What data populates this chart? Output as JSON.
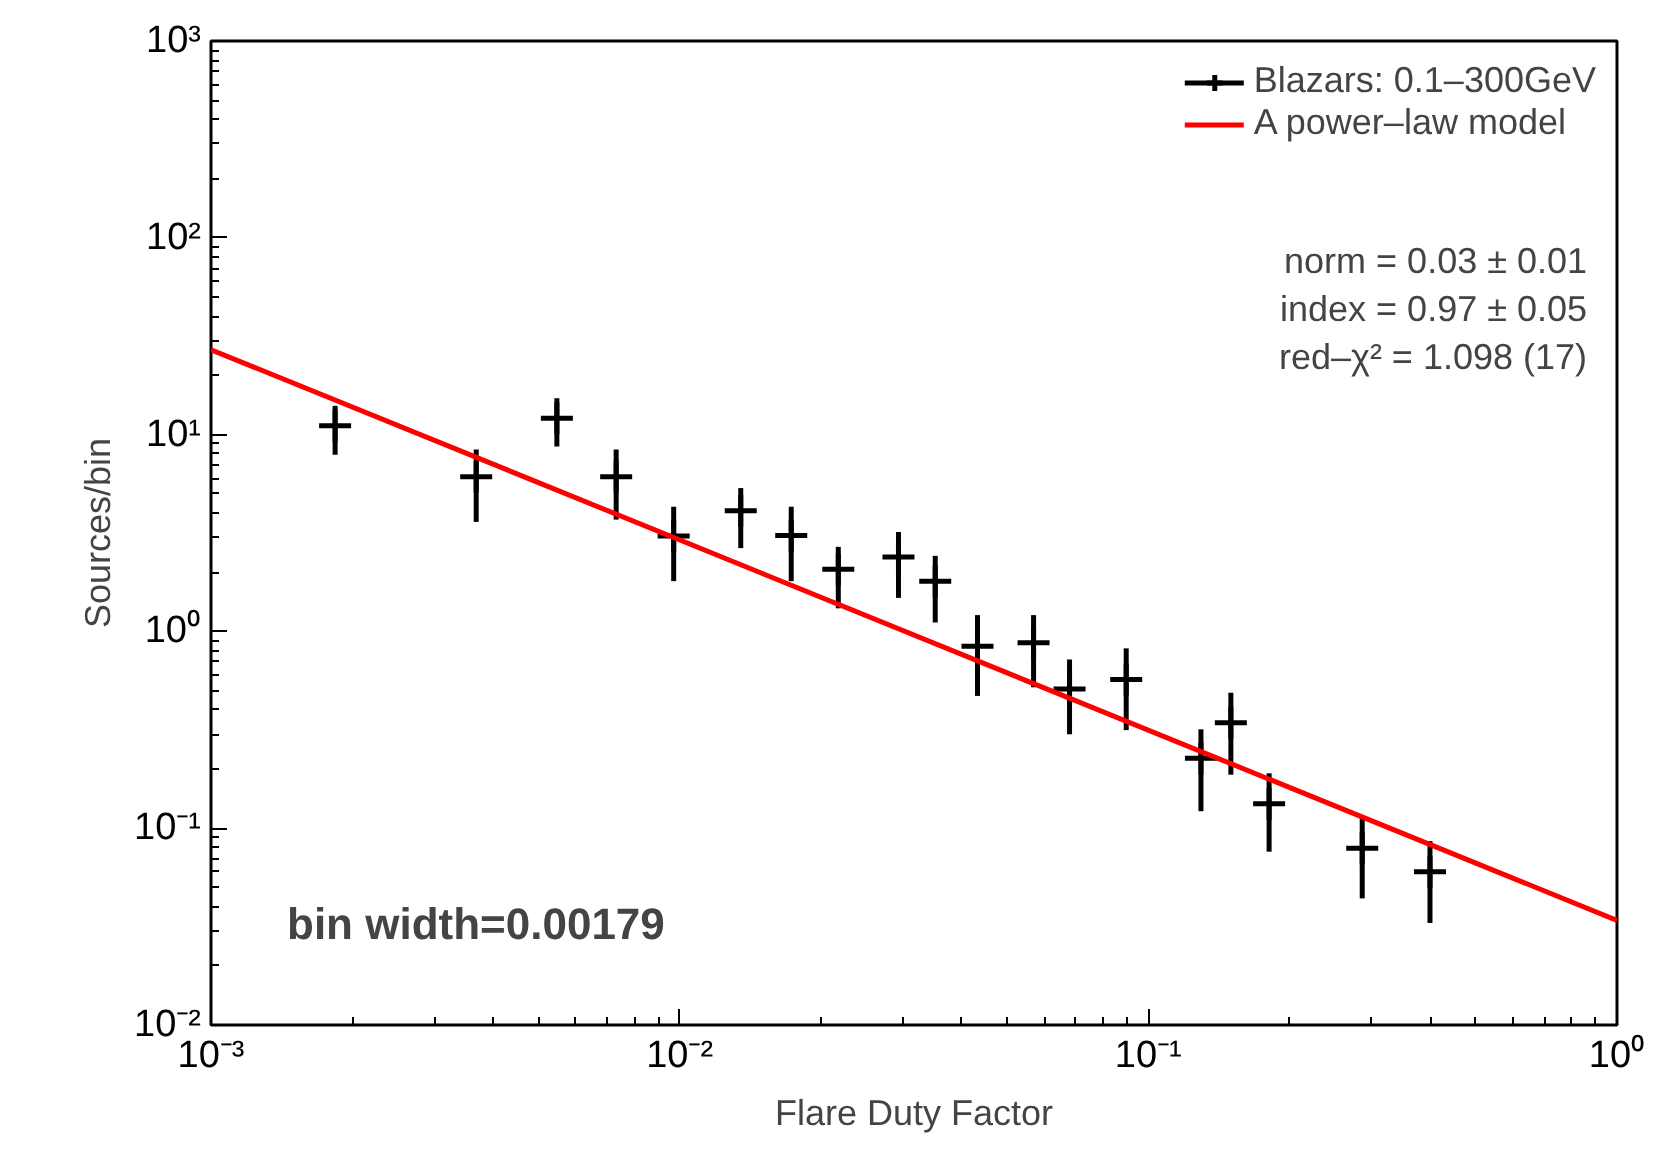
{
  "chart_data": {
    "type": "scatter",
    "xlabel": "Flare Duty Factor",
    "ylabel": "Sources/bin",
    "log": "xy",
    "xlim": [
      0.001,
      1
    ],
    "ylim": [
      0.01,
      1000
    ],
    "xticks": [
      {
        "value": 0.001,
        "label": "10⁻³"
      },
      {
        "value": 0.01,
        "label": "10⁻²"
      },
      {
        "value": 0.1,
        "label": "10⁻¹"
      },
      {
        "value": 1,
        "label": "10⁰"
      }
    ],
    "yticks": [
      {
        "value": 0.01,
        "label": "10⁻²"
      },
      {
        "value": 0.1,
        "label": "10⁻¹"
      },
      {
        "value": 1,
        "label": "10⁰"
      },
      {
        "value": 10,
        "label": "10¹"
      },
      {
        "value": 100,
        "label": "10²"
      },
      {
        "value": 1000,
        "label": "10³"
      }
    ],
    "grid": false,
    "legend": "top right",
    "series": [
      {
        "name": "Blazars: 0.1–300GeV",
        "marker": "cross",
        "color": "#000000",
        "x": [
          0.00184,
          0.00368,
          0.00547,
          0.00732,
          0.00971,
          0.0135,
          0.0173,
          0.0218,
          0.0293,
          0.0351,
          0.0432,
          0.0569,
          0.0679,
          0.0897,
          0.1295,
          0.15,
          0.181,
          0.286,
          0.399
        ],
        "values": [
          11.1,
          6.1,
          12.1,
          6.1,
          3.05,
          4.1,
          3.07,
          2.07,
          2.39,
          1.8,
          0.84,
          0.875,
          0.51,
          0.57,
          0.227,
          0.343,
          0.133,
          0.079,
          0.06
        ],
        "errors": [
          [
            7.9,
            14.0
          ],
          [
            3.6,
            8.4
          ],
          [
            8.7,
            15.3
          ],
          [
            3.7,
            8.4
          ],
          [
            1.8,
            4.3
          ],
          [
            2.65,
            5.35
          ],
          [
            1.8,
            4.3
          ],
          [
            1.31,
            2.69
          ],
          [
            1.48,
            3.2
          ],
          [
            1.11,
            2.42
          ],
          [
            0.47,
            1.21
          ],
          [
            0.52,
            1.21
          ],
          [
            0.3,
            0.72
          ],
          [
            0.315,
            0.82
          ],
          [
            0.122,
            0.318
          ],
          [
            0.187,
            0.488
          ],
          [
            0.076,
            0.19
          ],
          [
            0.044,
            0.113
          ],
          [
            0.033,
            0.086
          ]
        ]
      },
      {
        "name": "A power–law model",
        "type": "line",
        "color": "#ff0000",
        "line_style": "solid",
        "x": [
          0.001,
          1
        ],
        "values": [
          27,
          0.034
        ]
      }
    ],
    "annotations": [
      "norm = 0.03 ± 0.01",
      "index = 0.97 ± 0.05",
      "red–χ² = 1.098 (17)",
      "bin width=0.00179"
    ]
  }
}
